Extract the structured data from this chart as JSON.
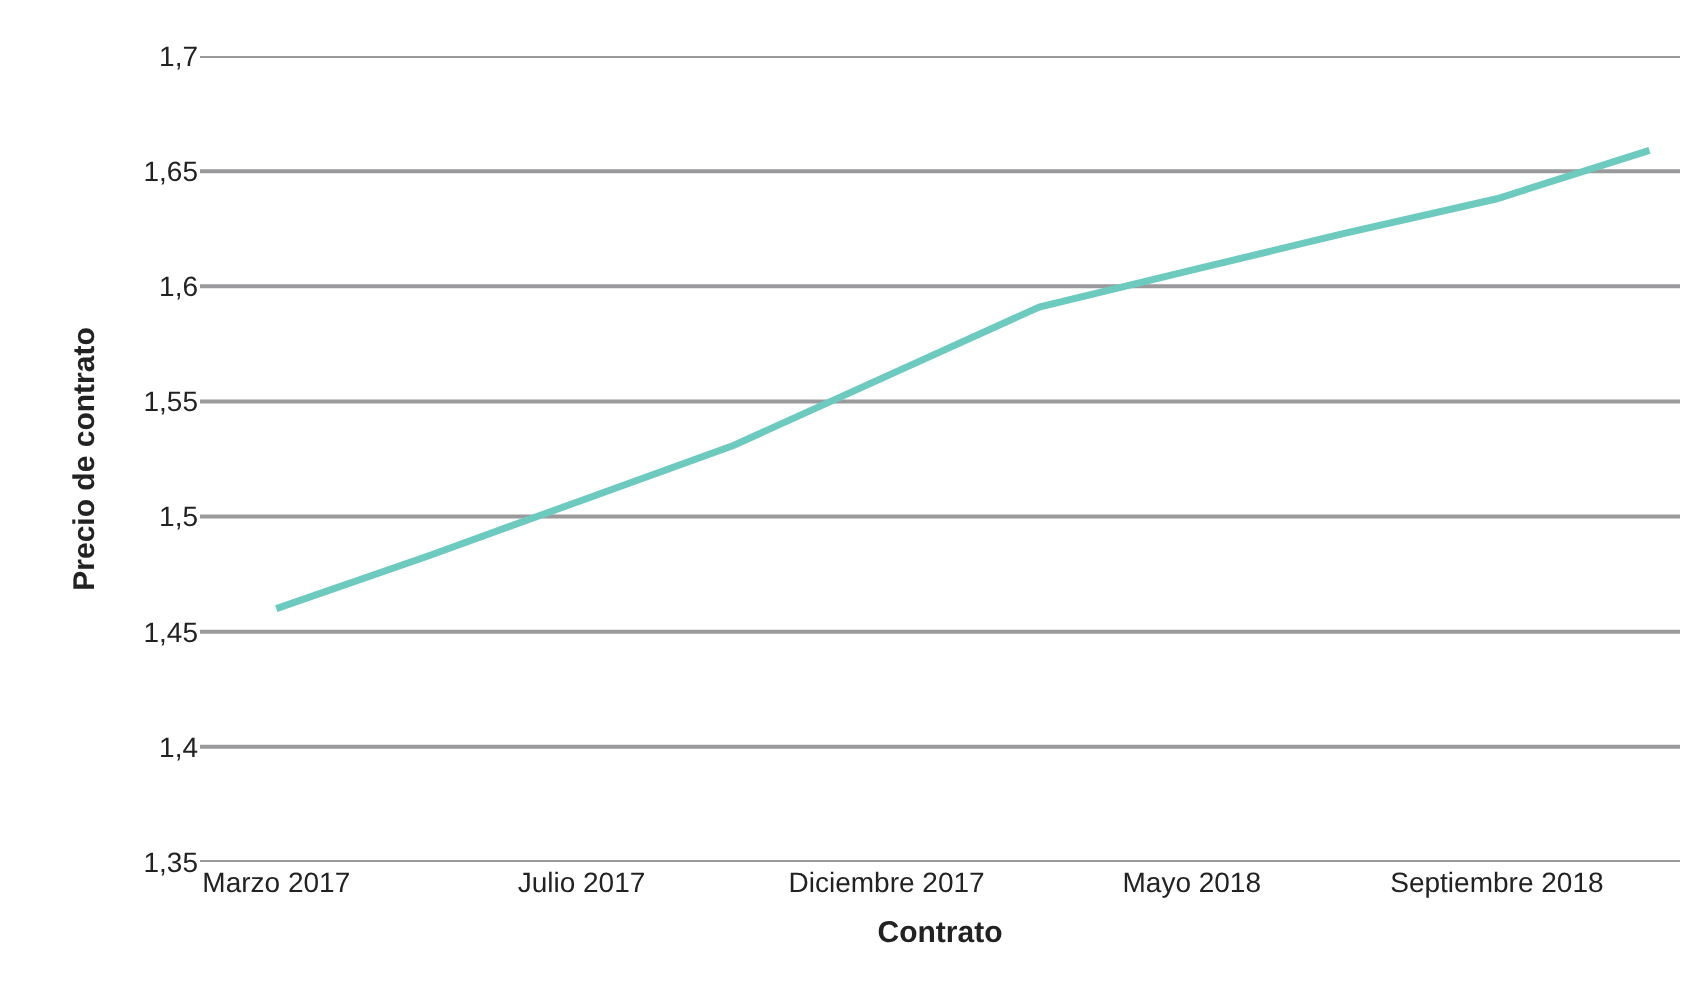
{
  "chart_data": {
    "type": "line",
    "xlabel": "Contrato",
    "ylabel": "Precio de contrato",
    "categories": [
      "Marzo 2017",
      null,
      "Julio 2017",
      null,
      "Diciembre 2017",
      null,
      "Mayo 2018",
      null,
      "Septiembre 2018",
      null
    ],
    "series": [
      {
        "color": "#6ccbbe",
        "values": [
          1.46,
          1.483,
          1.507,
          1.531,
          1.561,
          1.591,
          1.607,
          1.623,
          1.638,
          1.659
        ]
      }
    ],
    "ylim": [
      1.35,
      1.7
    ],
    "yticks": [
      {
        "value": 1.35,
        "label": "1,35"
      },
      {
        "value": 1.4,
        "label": "1,4"
      },
      {
        "value": 1.45,
        "label": "1,45"
      },
      {
        "value": 1.5,
        "label": "1,5"
      },
      {
        "value": 1.55,
        "label": "1,55"
      },
      {
        "value": 1.6,
        "label": "1,6"
      },
      {
        "value": 1.65,
        "label": "1,65"
      },
      {
        "value": 1.7,
        "label": "1,7"
      }
    ],
    "grid": "y",
    "marker": "none",
    "line_style": "solid"
  }
}
